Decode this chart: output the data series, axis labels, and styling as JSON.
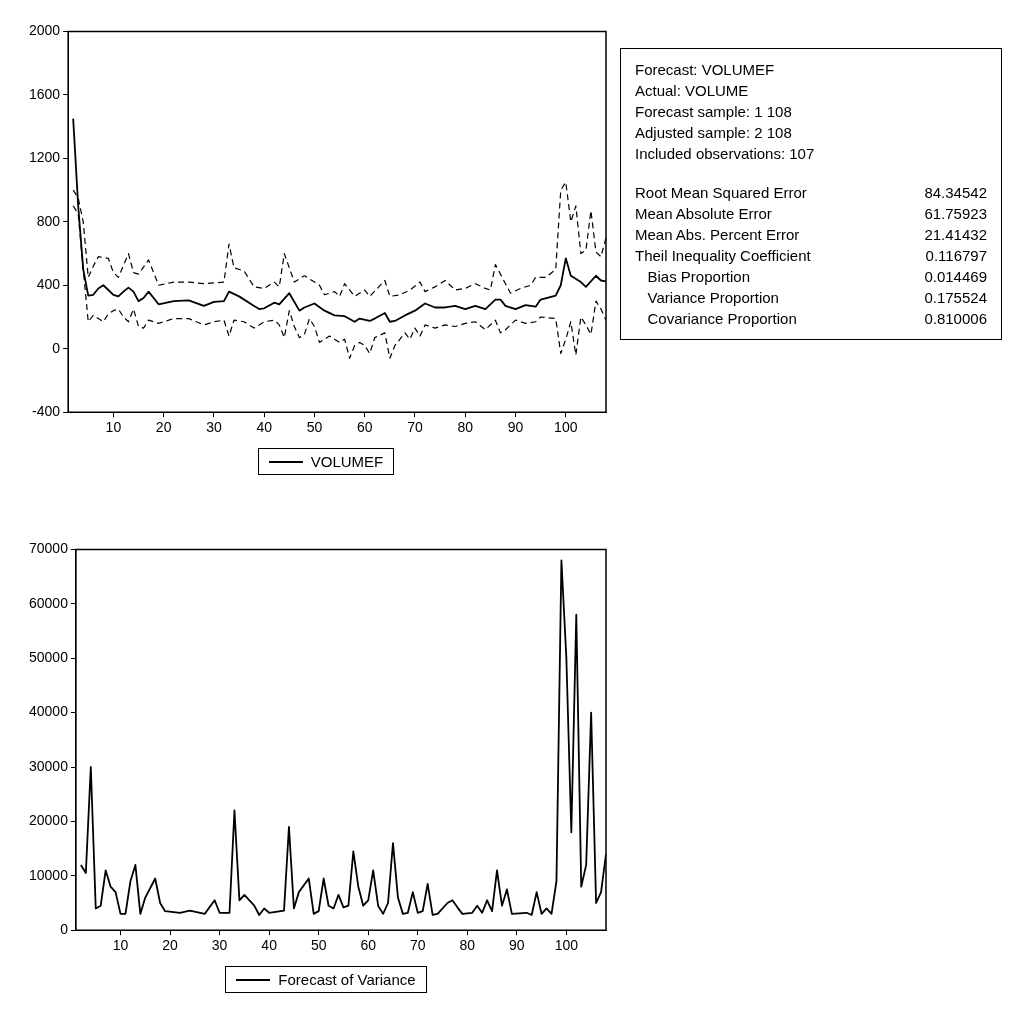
{
  "chart_data": [
    {
      "type": "line",
      "legend": "bottom",
      "marker": "none",
      "grid": false,
      "xlim": [
        1,
        108
      ],
      "xticks": [
        10,
        20,
        30,
        40,
        50,
        60,
        70,
        80,
        90,
        100
      ],
      "ylim": [
        -400,
        2000
      ],
      "yticks": [
        -400,
        0,
        400,
        800,
        1200,
        1600,
        2000
      ],
      "series": [
        {
          "name": "VOLUMEF",
          "color": "#000000",
          "line_style": "solid",
          "x": [
            2,
            3,
            4,
            5,
            6,
            7,
            8,
            9,
            10,
            11,
            12,
            13,
            14,
            15,
            16,
            17,
            19,
            22,
            25,
            28,
            30,
            32,
            33,
            35,
            38,
            39,
            40,
            42,
            43,
            45,
            47,
            48,
            50,
            52,
            54,
            56,
            58,
            59,
            61,
            62,
            64,
            65,
            66,
            68,
            70,
            72,
            74,
            76,
            78,
            80,
            82,
            84,
            86,
            87,
            88,
            90,
            92,
            94,
            95,
            98,
            99,
            100,
            101,
            103,
            104,
            106,
            107,
            108
          ],
          "values": [
            1450,
            900,
            500,
            335,
            340,
            380,
            400,
            370,
            340,
            330,
            360,
            385,
            360,
            300,
            320,
            360,
            280,
            300,
            305,
            270,
            295,
            300,
            360,
            330,
            270,
            250,
            255,
            290,
            280,
            350,
            240,
            260,
            285,
            240,
            210,
            205,
            170,
            190,
            175,
            190,
            225,
            170,
            175,
            210,
            240,
            285,
            260,
            260,
            270,
            250,
            270,
            250,
            310,
            310,
            270,
            250,
            275,
            265,
            310,
            335,
            400,
            570,
            460,
            420,
            390,
            460,
            430,
            425
          ]
        },
        {
          "color": "#000000",
          "line_style": "dashed",
          "x": [
            2,
            3,
            4,
            5,
            6,
            7,
            9,
            10,
            11,
            13,
            14,
            15,
            17,
            19,
            22,
            25,
            28,
            32,
            33,
            34,
            36,
            38,
            40,
            42,
            43,
            44,
            46,
            48,
            50,
            51,
            52,
            54,
            55,
            56,
            58,
            60,
            61,
            64,
            65,
            67,
            69,
            71,
            72,
            74,
            76,
            78,
            80,
            82,
            84,
            85,
            86,
            88,
            89,
            91,
            93,
            94,
            96,
            98,
            99,
            100,
            101,
            102,
            103,
            104,
            105,
            106,
            107,
            108
          ],
          "values": [
            1000,
            950,
            800,
            450,
            520,
            580,
            570,
            480,
            450,
            600,
            480,
            470,
            560,
            400,
            420,
            420,
            410,
            420,
            660,
            510,
            490,
            390,
            380,
            420,
            390,
            600,
            420,
            460,
            420,
            400,
            340,
            360,
            330,
            410,
            330,
            370,
            330,
            430,
            330,
            340,
            370,
            420,
            360,
            390,
            430,
            370,
            380,
            410,
            380,
            370,
            530,
            410,
            350,
            380,
            400,
            450,
            450,
            500,
            1000,
            1050,
            800,
            900,
            600,
            620,
            870,
            610,
            580,
            700
          ]
        },
        {
          "color": "#000000",
          "line_style": "dashed",
          "x": [
            2,
            3,
            4,
            5,
            6,
            7,
            8,
            9,
            10,
            11,
            12,
            13,
            14,
            15,
            16,
            17,
            19,
            22,
            25,
            28,
            30,
            32,
            33,
            34,
            36,
            38,
            40,
            42,
            43,
            44,
            45,
            46,
            47,
            48,
            49,
            50,
            51,
            53,
            55,
            56,
            57,
            58,
            59,
            60,
            61,
            62,
            64,
            65,
            66,
            68,
            69,
            70,
            71,
            72,
            74,
            76,
            78,
            80,
            82,
            84,
            86,
            87,
            88,
            90,
            92,
            94,
            95,
            98,
            99,
            100,
            101,
            102,
            103,
            104,
            105,
            106,
            107,
            108
          ],
          "values": [
            900,
            850,
            500,
            170,
            210,
            190,
            170,
            220,
            240,
            250,
            200,
            170,
            250,
            140,
            130,
            180,
            160,
            190,
            190,
            150,
            170,
            180,
            80,
            180,
            170,
            130,
            170,
            180,
            150,
            70,
            240,
            140,
            70,
            90,
            190,
            140,
            40,
            80,
            40,
            60,
            -60,
            20,
            40,
            20,
            -30,
            70,
            100,
            -60,
            20,
            100,
            60,
            130,
            80,
            150,
            130,
            150,
            140,
            160,
            170,
            120,
            180,
            100,
            120,
            180,
            160,
            170,
            200,
            190,
            -30,
            60,
            170,
            -40,
            200,
            150,
            90,
            300,
            250,
            180
          ]
        }
      ]
    },
    {
      "type": "other",
      "annotations": [
        "Forecast: VOLUMEF",
        "Actual: VOLUME",
        "Forecast sample: 1 108",
        "Adjusted sample: 2 108",
        "Included observations: 107",
        "Root Mean Squared Error\t84.34542",
        "Mean Absolute Error\t61.75923",
        "Mean Abs. Percent Error\t21.41432",
        "Theil Inequality Coefficient\t0.116797",
        "   Bias Proportion\t0.014469",
        "   Variance Proportion\t0.175524",
        "   Covariance Proportion\t0.810006"
      ]
    },
    {
      "type": "line",
      "legend": "bottom",
      "marker": "none",
      "grid": false,
      "xlim": [
        1,
        108
      ],
      "xticks": [
        10,
        20,
        30,
        40,
        50,
        60,
        70,
        80,
        90,
        100
      ],
      "ylim": [
        0,
        70000
      ],
      "yticks": [
        0,
        10000,
        20000,
        30000,
        40000,
        50000,
        60000,
        70000
      ],
      "series": [
        {
          "name": "Forecast of Variance",
          "color": "#000000",
          "line_style": "solid",
          "x": [
            2,
            3,
            4,
            5,
            6,
            7,
            8,
            9,
            10,
            11,
            12,
            13,
            14,
            15,
            17,
            18,
            19,
            22,
            24,
            27,
            29,
            30,
            32,
            33,
            34,
            35,
            37,
            38,
            39,
            40,
            43,
            44,
            45,
            46,
            48,
            49,
            50,
            51,
            52,
            53,
            54,
            55,
            56,
            57,
            58,
            59,
            60,
            61,
            62,
            63,
            64,
            65,
            66,
            67,
            68,
            69,
            70,
            71,
            72,
            73,
            74,
            76,
            77,
            78,
            79,
            81,
            82,
            83,
            84,
            85,
            86,
            87,
            88,
            89,
            92,
            93,
            94,
            95,
            96,
            97,
            98,
            99,
            100,
            101,
            102,
            103,
            104,
            105,
            106,
            107,
            108
          ],
          "values": [
            12000,
            10500,
            30000,
            4000,
            4500,
            11000,
            8000,
            7000,
            3000,
            3000,
            9000,
            12000,
            3000,
            6000,
            9500,
            5000,
            3500,
            3200,
            3600,
            3000,
            5500,
            3200,
            3200,
            22000,
            5500,
            6500,
            4500,
            2800,
            4000,
            3200,
            3600,
            19000,
            4000,
            7000,
            9500,
            3000,
            3500,
            9500,
            4500,
            4000,
            6500,
            4200,
            4500,
            14500,
            8000,
            4500,
            5500,
            11000,
            4500,
            3000,
            5000,
            16000,
            6000,
            3000,
            3200,
            7000,
            3200,
            3500,
            8500,
            2800,
            3000,
            5000,
            5500,
            4200,
            3000,
            3200,
            4500,
            3200,
            5500,
            3500,
            11000,
            4500,
            7500,
            3000,
            3200,
            2800,
            7000,
            3000,
            4000,
            3000,
            9000,
            68000,
            50000,
            18000,
            58000,
            8000,
            12000,
            40000,
            5000,
            7000,
            14000
          ]
        }
      ]
    }
  ]
}
